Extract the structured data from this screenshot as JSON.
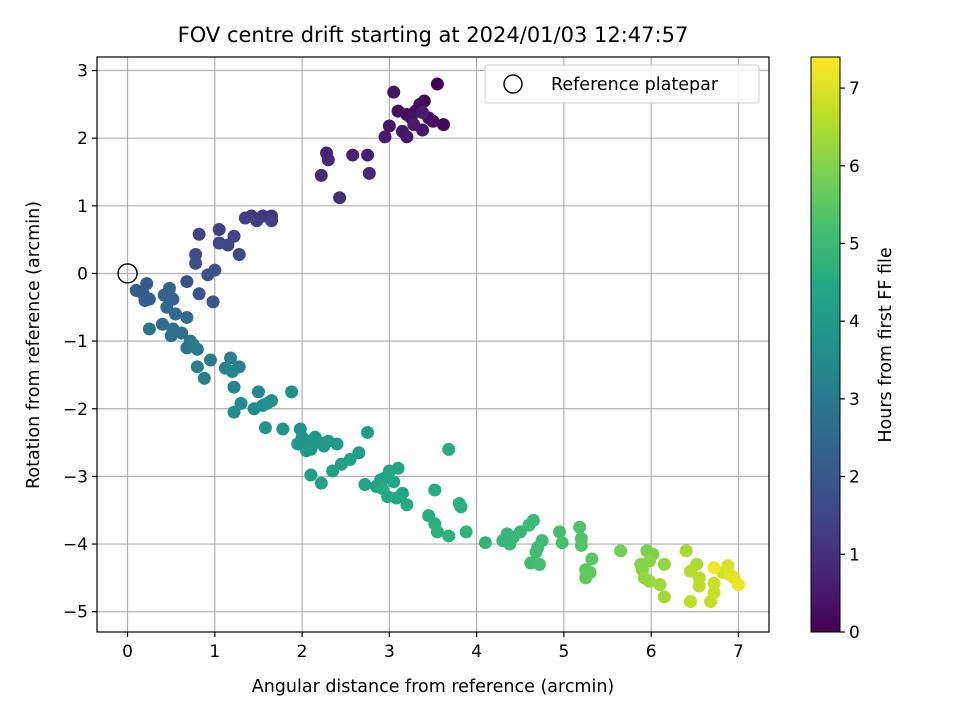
{
  "chart_data": {
    "type": "scatter",
    "title": "FOV centre drift starting at 2024/01/03 12:47:57",
    "xlabel": "Angular distance from reference (arcmin)",
    "ylabel": "Rotation from reference (arcmin)",
    "xlim": [
      -0.35,
      7.35
    ],
    "ylim": [
      -5.3,
      3.2
    ],
    "xticks": [
      0,
      1,
      2,
      3,
      4,
      5,
      6,
      7
    ],
    "xtick_labels": [
      "0",
      "1",
      "2",
      "3",
      "4",
      "5",
      "6",
      "7"
    ],
    "yticks": [
      -5,
      -4,
      -3,
      -2,
      -1,
      0,
      1,
      2,
      3
    ],
    "ytick_labels": [
      "−5",
      "−4",
      "−3",
      "−2",
      "−1",
      "0",
      "1",
      "2",
      "3"
    ],
    "grid": true,
    "legend": {
      "placement": "top-right",
      "entries": [
        {
          "label": "Reference platepar",
          "marker": "open-circle"
        }
      ]
    },
    "reference_point": {
      "x": 0,
      "y": 0
    },
    "colorbar": {
      "label": "Hours from first FF file",
      "colormap": "viridis",
      "range": [
        0,
        7.4
      ],
      "ticks": [
        0,
        1,
        2,
        3,
        4,
        5,
        6,
        7
      ],
      "tick_labels": [
        "0",
        "1",
        "2",
        "3",
        "4",
        "5",
        "6",
        "7"
      ]
    },
    "points": [
      {
        "x": 3.55,
        "y": 2.8,
        "t": 0.05
      },
      {
        "x": 3.62,
        "y": 2.2,
        "t": 0.1
      },
      {
        "x": 3.4,
        "y": 2.55,
        "t": 0.15
      },
      {
        "x": 3.3,
        "y": 2.4,
        "t": 0.2
      },
      {
        "x": 3.35,
        "y": 2.5,
        "t": 0.22
      },
      {
        "x": 3.2,
        "y": 2.35,
        "t": 0.25
      },
      {
        "x": 3.1,
        "y": 2.4,
        "t": 0.28
      },
      {
        "x": 3.45,
        "y": 2.3,
        "t": 0.3
      },
      {
        "x": 3.5,
        "y": 2.25,
        "t": 0.32
      },
      {
        "x": 3.25,
        "y": 2.3,
        "t": 0.35
      },
      {
        "x": 3.05,
        "y": 2.68,
        "t": 0.38
      },
      {
        "x": 3.0,
        "y": 2.18,
        "t": 0.4
      },
      {
        "x": 3.15,
        "y": 2.1,
        "t": 0.42
      },
      {
        "x": 3.38,
        "y": 2.12,
        "t": 0.45
      },
      {
        "x": 3.2,
        "y": 2.02,
        "t": 0.48
      },
      {
        "x": 2.95,
        "y": 2.02,
        "t": 0.5
      },
      {
        "x": 3.28,
        "y": 2.2,
        "t": 0.53
      },
      {
        "x": 3.38,
        "y": 2.38,
        "t": 0.56
      },
      {
        "x": 2.75,
        "y": 1.75,
        "t": 0.65
      },
      {
        "x": 2.58,
        "y": 1.75,
        "t": 0.7
      },
      {
        "x": 2.28,
        "y": 1.78,
        "t": 0.75
      },
      {
        "x": 2.3,
        "y": 1.68,
        "t": 0.8
      },
      {
        "x": 2.77,
        "y": 1.48,
        "t": 0.85
      },
      {
        "x": 2.22,
        "y": 1.45,
        "t": 0.9
      },
      {
        "x": 2.43,
        "y": 1.12,
        "t": 0.95
      },
      {
        "x": 1.65,
        "y": 0.85,
        "t": 1.1
      },
      {
        "x": 1.55,
        "y": 0.85,
        "t": 1.15
      },
      {
        "x": 1.42,
        "y": 0.85,
        "t": 1.2
      },
      {
        "x": 1.35,
        "y": 0.82,
        "t": 1.25
      },
      {
        "x": 1.48,
        "y": 0.78,
        "t": 1.3
      },
      {
        "x": 1.65,
        "y": 0.78,
        "t": 1.35
      },
      {
        "x": 1.05,
        "y": 0.65,
        "t": 1.4
      },
      {
        "x": 0.82,
        "y": 0.58,
        "t": 1.45
      },
      {
        "x": 1.22,
        "y": 0.55,
        "t": 1.5
      },
      {
        "x": 1.15,
        "y": 0.42,
        "t": 1.55
      },
      {
        "x": 1.05,
        "y": 0.45,
        "t": 1.6
      },
      {
        "x": 1.28,
        "y": 0.28,
        "t": 1.65
      },
      {
        "x": 0.78,
        "y": 0.28,
        "t": 1.7
      },
      {
        "x": 0.78,
        "y": 0.15,
        "t": 1.75
      },
      {
        "x": 1.0,
        "y": 0.05,
        "t": 1.8
      },
      {
        "x": 0.92,
        "y": -0.02,
        "t": 1.85
      },
      {
        "x": 0.68,
        "y": -0.12,
        "t": 1.9
      },
      {
        "x": 0.82,
        "y": -0.3,
        "t": 1.95
      },
      {
        "x": 0.98,
        "y": -0.42,
        "t": 2.0
      },
      {
        "x": 0.22,
        "y": -0.15,
        "t": 2.05
      },
      {
        "x": 0.1,
        "y": -0.25,
        "t": 2.1
      },
      {
        "x": 0.18,
        "y": -0.3,
        "t": 2.15
      },
      {
        "x": 0.25,
        "y": -0.38,
        "t": 2.2
      },
      {
        "x": 0.2,
        "y": -0.4,
        "t": 2.25
      },
      {
        "x": 0.48,
        "y": -0.22,
        "t": 2.3
      },
      {
        "x": 0.42,
        "y": -0.32,
        "t": 2.35
      },
      {
        "x": 0.52,
        "y": -0.38,
        "t": 2.4
      },
      {
        "x": 0.45,
        "y": -0.5,
        "t": 2.45
      },
      {
        "x": 0.55,
        "y": -0.6,
        "t": 2.5
      },
      {
        "x": 0.68,
        "y": -0.65,
        "t": 2.55
      },
      {
        "x": 0.4,
        "y": -0.75,
        "t": 2.6
      },
      {
        "x": 0.52,
        "y": -0.82,
        "t": 2.65
      },
      {
        "x": 0.62,
        "y": -0.88,
        "t": 2.7
      },
      {
        "x": 0.5,
        "y": -0.92,
        "t": 2.75
      },
      {
        "x": 0.25,
        "y": -0.82,
        "t": 2.8
      },
      {
        "x": 0.72,
        "y": -1.0,
        "t": 2.85
      },
      {
        "x": 0.68,
        "y": -1.1,
        "t": 2.9
      },
      {
        "x": 0.8,
        "y": -1.12,
        "t": 2.95
      },
      {
        "x": 0.75,
        "y": -1.05,
        "t": 3.0
      },
      {
        "x": 0.95,
        "y": -1.28,
        "t": 3.05
      },
      {
        "x": 0.8,
        "y": -1.38,
        "t": 3.1
      },
      {
        "x": 0.88,
        "y": -1.55,
        "t": 3.15
      },
      {
        "x": 1.18,
        "y": -1.25,
        "t": 3.2
      },
      {
        "x": 1.28,
        "y": -1.38,
        "t": 3.25
      },
      {
        "x": 1.12,
        "y": -1.4,
        "t": 3.3
      },
      {
        "x": 1.2,
        "y": -1.45,
        "t": 3.35
      },
      {
        "x": 1.22,
        "y": -1.68,
        "t": 3.4
      },
      {
        "x": 1.5,
        "y": -1.75,
        "t": 3.45
      },
      {
        "x": 1.3,
        "y": -1.92,
        "t": 3.5
      },
      {
        "x": 1.45,
        "y": -2.0,
        "t": 3.55
      },
      {
        "x": 1.22,
        "y": -2.05,
        "t": 3.6
      },
      {
        "x": 1.6,
        "y": -1.92,
        "t": 3.62
      },
      {
        "x": 1.65,
        "y": -1.88,
        "t": 3.65
      },
      {
        "x": 1.55,
        "y": -1.95,
        "t": 3.68
      },
      {
        "x": 1.88,
        "y": -1.75,
        "t": 3.7
      },
      {
        "x": 1.58,
        "y": -2.28,
        "t": 3.72
      },
      {
        "x": 1.78,
        "y": -2.3,
        "t": 3.75
      },
      {
        "x": 1.98,
        "y": -2.3,
        "t": 3.78
      },
      {
        "x": 2.0,
        "y": -2.42,
        "t": 3.8
      },
      {
        "x": 2.05,
        "y": -2.48,
        "t": 3.82
      },
      {
        "x": 1.95,
        "y": -2.52,
        "t": 3.85
      },
      {
        "x": 2.15,
        "y": -2.42,
        "t": 3.88
      },
      {
        "x": 2.2,
        "y": -2.5,
        "t": 3.9
      },
      {
        "x": 2.1,
        "y": -2.6,
        "t": 3.92
      },
      {
        "x": 2.25,
        "y": -2.55,
        "t": 3.95
      },
      {
        "x": 2.3,
        "y": -2.48,
        "t": 3.98
      },
      {
        "x": 2.05,
        "y": -2.62,
        "t": 4.0
      },
      {
        "x": 2.4,
        "y": -2.52,
        "t": 4.02
      },
      {
        "x": 2.75,
        "y": -2.35,
        "t": 4.05
      },
      {
        "x": 2.45,
        "y": -2.82,
        "t": 4.08
      },
      {
        "x": 2.55,
        "y": -2.75,
        "t": 4.1
      },
      {
        "x": 2.65,
        "y": -2.65,
        "t": 4.12
      },
      {
        "x": 2.35,
        "y": -2.92,
        "t": 4.15
      },
      {
        "x": 2.1,
        "y": -2.98,
        "t": 4.18
      },
      {
        "x": 2.22,
        "y": -3.1,
        "t": 4.2
      },
      {
        "x": 2.72,
        "y": -3.12,
        "t": 4.25
      },
      {
        "x": 2.85,
        "y": -3.15,
        "t": 4.28
      },
      {
        "x": 2.9,
        "y": -3.05,
        "t": 4.3
      },
      {
        "x": 2.95,
        "y": -3.02,
        "t": 4.32
      },
      {
        "x": 3.0,
        "y": -2.92,
        "t": 4.35
      },
      {
        "x": 3.1,
        "y": -2.88,
        "t": 4.38
      },
      {
        "x": 3.05,
        "y": -3.08,
        "t": 4.4
      },
      {
        "x": 3.15,
        "y": -3.25,
        "t": 4.42
      },
      {
        "x": 2.98,
        "y": -3.3,
        "t": 4.45
      },
      {
        "x": 3.08,
        "y": -3.32,
        "t": 4.48
      },
      {
        "x": 3.2,
        "y": -3.42,
        "t": 4.5
      },
      {
        "x": 2.92,
        "y": -3.18,
        "t": 4.52
      },
      {
        "x": 3.52,
        "y": -3.2,
        "t": 4.55
      },
      {
        "x": 3.68,
        "y": -2.6,
        "t": 4.58
      },
      {
        "x": 3.45,
        "y": -3.58,
        "t": 4.6
      },
      {
        "x": 3.52,
        "y": -3.7,
        "t": 4.62
      },
      {
        "x": 3.8,
        "y": -3.4,
        "t": 4.65
      },
      {
        "x": 3.82,
        "y": -3.45,
        "t": 4.68
      },
      {
        "x": 3.55,
        "y": -3.82,
        "t": 4.7
      },
      {
        "x": 3.68,
        "y": -3.88,
        "t": 4.72
      },
      {
        "x": 3.88,
        "y": -3.82,
        "t": 4.75
      },
      {
        "x": 4.1,
        "y": -3.98,
        "t": 4.8
      },
      {
        "x": 4.3,
        "y": -3.95,
        "t": 4.85
      },
      {
        "x": 4.35,
        "y": -3.85,
        "t": 4.88
      },
      {
        "x": 4.42,
        "y": -3.9,
        "t": 4.9
      },
      {
        "x": 4.5,
        "y": -3.82,
        "t": 4.92
      },
      {
        "x": 4.38,
        "y": -4.0,
        "t": 4.95
      },
      {
        "x": 4.65,
        "y": -3.65,
        "t": 5.0
      },
      {
        "x": 4.6,
        "y": -3.72,
        "t": 5.02
      },
      {
        "x": 4.75,
        "y": -3.95,
        "t": 5.05
      },
      {
        "x": 4.7,
        "y": -4.05,
        "t": 5.08
      },
      {
        "x": 4.68,
        "y": -4.12,
        "t": 5.1
      },
      {
        "x": 4.62,
        "y": -4.28,
        "t": 5.12
      },
      {
        "x": 4.72,
        "y": -4.3,
        "t": 5.15
      },
      {
        "x": 4.95,
        "y": -3.82,
        "t": 5.2
      },
      {
        "x": 4.98,
        "y": -3.98,
        "t": 5.22
      },
      {
        "x": 5.18,
        "y": -3.75,
        "t": 5.3
      },
      {
        "x": 5.2,
        "y": -3.92,
        "t": 5.35
      },
      {
        "x": 5.2,
        "y": -4.02,
        "t": 5.4
      },
      {
        "x": 5.32,
        "y": -4.22,
        "t": 5.45
      },
      {
        "x": 5.25,
        "y": -4.38,
        "t": 5.5
      },
      {
        "x": 5.3,
        "y": -4.42,
        "t": 5.55
      },
      {
        "x": 5.25,
        "y": -4.5,
        "t": 5.6
      },
      {
        "x": 5.65,
        "y": -4.1,
        "t": 5.8
      },
      {
        "x": 5.95,
        "y": -4.1,
        "t": 5.9
      },
      {
        "x": 6.02,
        "y": -4.15,
        "t": 5.95
      },
      {
        "x": 5.88,
        "y": -4.3,
        "t": 6.0
      },
      {
        "x": 5.9,
        "y": -4.38,
        "t": 6.05
      },
      {
        "x": 5.98,
        "y": -4.25,
        "t": 6.1
      },
      {
        "x": 6.15,
        "y": -4.3,
        "t": 6.15
      },
      {
        "x": 5.92,
        "y": -4.5,
        "t": 6.2
      },
      {
        "x": 5.98,
        "y": -4.55,
        "t": 6.25
      },
      {
        "x": 6.1,
        "y": -4.6,
        "t": 6.3
      },
      {
        "x": 6.15,
        "y": -4.78,
        "t": 6.35
      },
      {
        "x": 6.4,
        "y": -4.1,
        "t": 6.4
      },
      {
        "x": 6.52,
        "y": -4.3,
        "t": 6.45
      },
      {
        "x": 6.45,
        "y": -4.4,
        "t": 6.5
      },
      {
        "x": 6.55,
        "y": -4.5,
        "t": 6.55
      },
      {
        "x": 6.55,
        "y": -4.62,
        "t": 6.6
      },
      {
        "x": 6.45,
        "y": -4.85,
        "t": 6.65
      },
      {
        "x": 6.68,
        "y": -4.85,
        "t": 6.7
      },
      {
        "x": 6.72,
        "y": -4.72,
        "t": 6.75
      },
      {
        "x": 6.72,
        "y": -4.58,
        "t": 6.8
      },
      {
        "x": 6.82,
        "y": -4.42,
        "t": 6.85
      },
      {
        "x": 6.88,
        "y": -4.32,
        "t": 6.95
      },
      {
        "x": 6.9,
        "y": -4.45,
        "t": 7.0
      },
      {
        "x": 6.95,
        "y": -4.5,
        "t": 7.1
      },
      {
        "x": 7.0,
        "y": -4.6,
        "t": 7.2
      },
      {
        "x": 6.72,
        "y": -4.35,
        "t": 7.3
      }
    ]
  }
}
